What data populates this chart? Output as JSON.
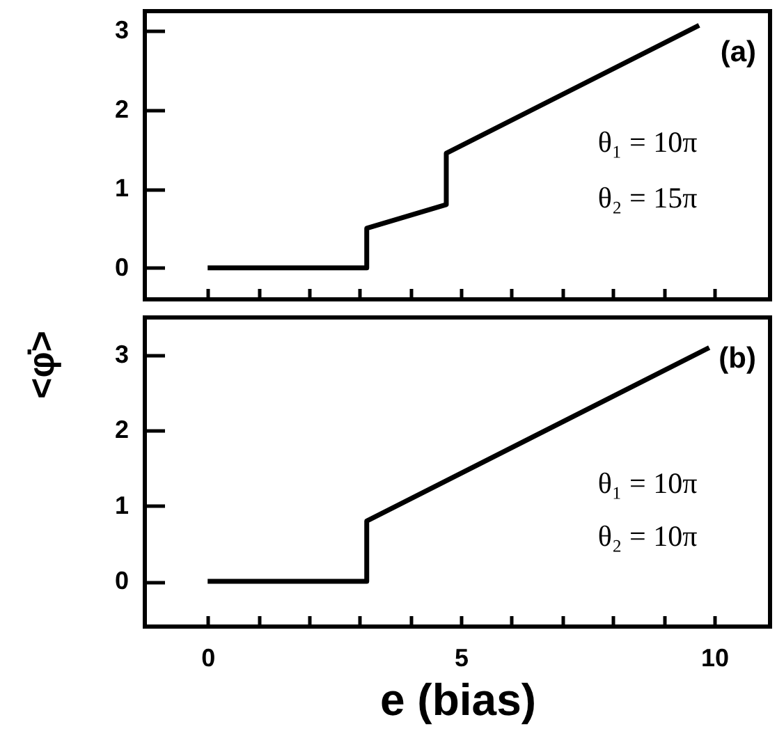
{
  "chart_data": [
    {
      "type": "line",
      "ylabel": "<φ̇>",
      "annotations": [
        "(a)",
        "θ₁ = 10π",
        "θ₂ = 15π"
      ],
      "tick_labels": "y",
      "grid": false,
      "marker": "none",
      "line_style": "solid",
      "xlim": [
        -1.24,
        11.1
      ],
      "xticks": [
        0,
        {
          "value": 1,
          "label": null
        },
        {
          "value": 2,
          "label": null
        },
        {
          "value": 3,
          "label": null
        },
        {
          "value": 4,
          "label": null
        },
        5,
        {
          "value": 6,
          "label": null
        },
        {
          "value": 7,
          "label": null
        },
        {
          "value": 8,
          "label": null
        },
        {
          "value": 9,
          "label": null
        },
        10
      ],
      "ylim": [
        -0.4,
        3.25
      ],
      "yticks": [
        0,
        1,
        2,
        3
      ],
      "series": [
        {
          "color": "#000000",
          "x": [
            0,
            3.14,
            3.14,
            4.71,
            4.71,
            9.7
          ],
          "values": [
            0,
            0,
            0.5,
            0.8,
            1.45,
            3.07
          ]
        }
      ]
    },
    {
      "type": "line",
      "xlabel": "e (bias)",
      "annotations": [
        "(b)",
        "θ₁ = 10π",
        "θ₂ = 10π"
      ],
      "grid": false,
      "marker": "none",
      "line_style": "solid",
      "xlim": [
        -1.24,
        11.1
      ],
      "xticks": [
        0,
        {
          "value": 1,
          "label": null
        },
        {
          "value": 2,
          "label": null
        },
        {
          "value": 3,
          "label": null
        },
        {
          "value": 4,
          "label": null
        },
        5,
        {
          "value": 6,
          "label": null
        },
        {
          "value": 7,
          "label": null
        },
        {
          "value": 8,
          "label": null
        },
        {
          "value": 9,
          "label": null
        },
        10
      ],
      "ylim": [
        -0.6,
        3.5
      ],
      "yticks": [
        0,
        1,
        2,
        3
      ],
      "series": [
        {
          "color": "#000000",
          "x": [
            0,
            3.14,
            3.14,
            9.9
          ],
          "values": [
            0,
            0,
            0.8,
            3.1
          ]
        }
      ]
    }
  ]
}
